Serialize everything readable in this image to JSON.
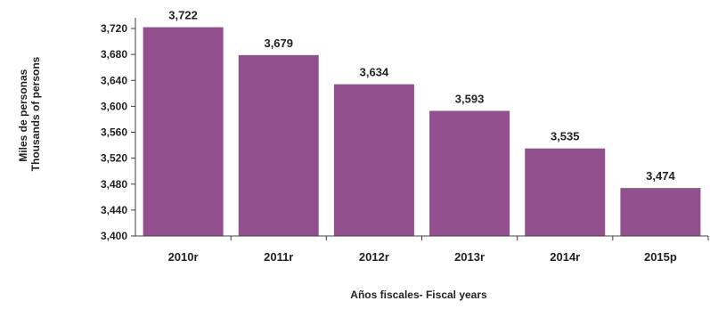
{
  "chart_data": {
    "type": "bar",
    "categories": [
      "2010r",
      "2011r",
      "2012r",
      "2013r",
      "2014r",
      "2015p"
    ],
    "values": [
      3722,
      3679,
      3634,
      3593,
      3535,
      3474
    ],
    "value_labels": [
      "3,722",
      "3,679",
      "3,634",
      "3,593",
      "3,535",
      "3,474"
    ],
    "xlabel": "Años fiscales- Fiscal years",
    "ylabel": [
      "Miles de personas",
      "Thousands of persons"
    ],
    "ylim": [
      3400,
      3740
    ],
    "yticks": [
      3400,
      3440,
      3480,
      3520,
      3560,
      3600,
      3640,
      3680,
      3720
    ],
    "ytick_labels": [
      "3,400",
      "3,440",
      "3,480",
      "3,520",
      "3,560",
      "3,600",
      "3,640",
      "3,680",
      "3,720"
    ],
    "bar_color": "#93508f",
    "grid": false,
    "legend": "none"
  }
}
